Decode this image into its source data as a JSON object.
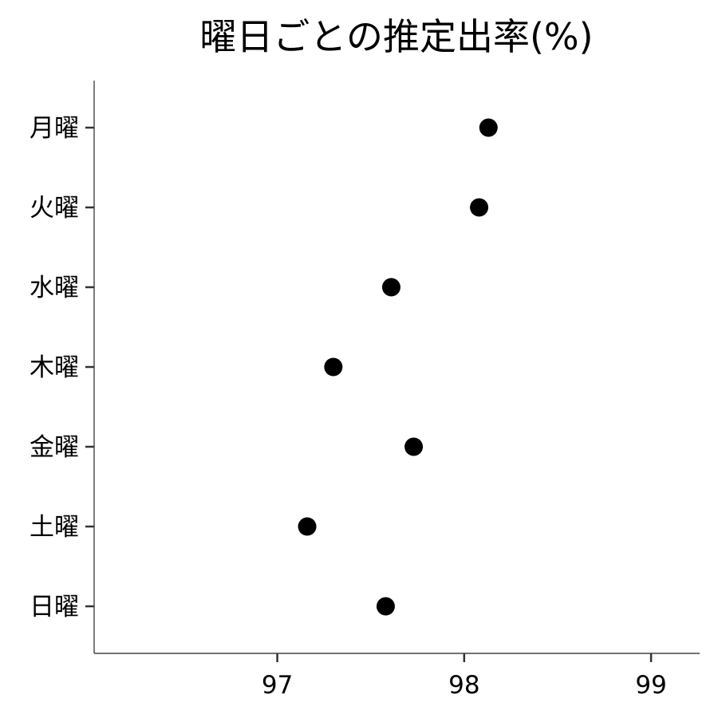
{
  "chart_data": {
    "type": "scatter",
    "title": "曜日ごとの推定出率(%)",
    "xlabel": "",
    "ylabel": "",
    "xlim": [
      96.02,
      99.26
    ],
    "x_ticks": [
      "97",
      "98",
      "99"
    ],
    "categories": [
      "月曜",
      "火曜",
      "水曜",
      "木曜",
      "金曜",
      "土曜",
      "日曜"
    ],
    "values": [
      98.13,
      98.08,
      97.61,
      97.3,
      97.73,
      97.16,
      97.58
    ],
    "grid": false,
    "legend": "none",
    "point_color": "#000000"
  }
}
